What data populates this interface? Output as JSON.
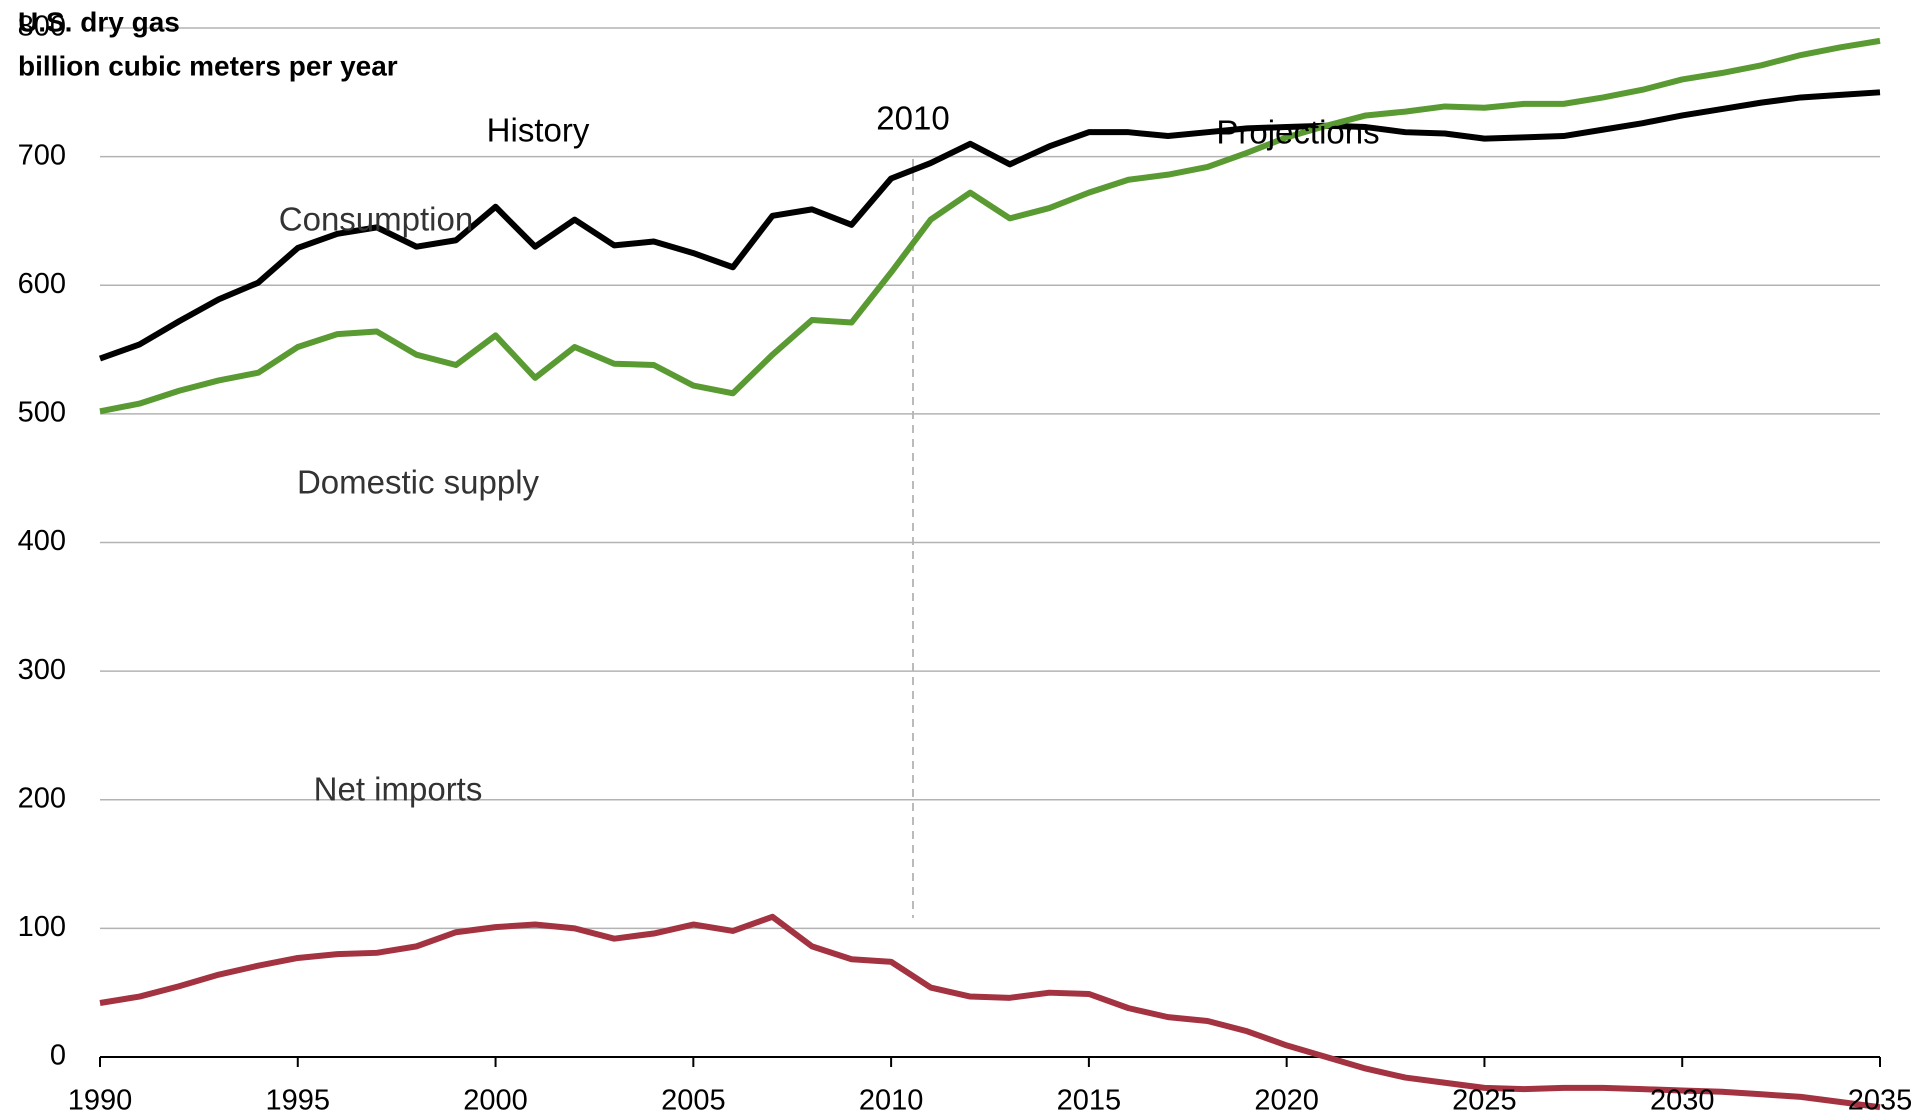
{
  "chart_data": {
    "type": "line",
    "title": "U.S. dry gas",
    "subtitle": "billion cubic  meters per year",
    "annotations": [
      "History",
      "2010",
      "Projections",
      "Consumption",
      "Domestic supply",
      "Net imports"
    ],
    "x": [
      1990,
      1991,
      1992,
      1993,
      1994,
      1995,
      1996,
      1997,
      1998,
      1999,
      2000,
      2001,
      2002,
      2003,
      2004,
      2005,
      2006,
      2007,
      2008,
      2009,
      2010,
      2011,
      2012,
      2013,
      2014,
      2015,
      2016,
      2017,
      2018,
      2019,
      2020,
      2021,
      2022,
      2023,
      2024,
      2025,
      2026,
      2027,
      2028,
      2029,
      2030,
      2031,
      2032,
      2033,
      2034,
      2035
    ],
    "series": [
      {
        "name": "Consumption",
        "color": "#000000",
        "values": [
          543,
          554,
          572,
          589,
          602,
          629,
          640,
          645,
          630,
          635,
          661,
          630,
          651,
          631,
          634,
          625,
          614,
          654,
          659,
          647,
          683,
          695,
          710,
          694,
          708,
          719,
          719,
          716,
          719,
          722,
          723,
          724,
          723,
          719,
          718,
          714,
          715,
          716,
          721,
          726,
          732,
          737,
          742,
          746,
          748,
          750
        ]
      },
      {
        "name": "Domestic supply",
        "color": "#5a9a32",
        "values": [
          502,
          508,
          518,
          526,
          532,
          552,
          562,
          564,
          546,
          538,
          561,
          528,
          552,
          539,
          538,
          522,
          516,
          546,
          573,
          571,
          610,
          651,
          672,
          652,
          660,
          672,
          682,
          686,
          692,
          703,
          715,
          724,
          732,
          735,
          739,
          738,
          741,
          741,
          746,
          752,
          760,
          765,
          771,
          779,
          785,
          790
        ]
      },
      {
        "name": "Net imports",
        "color": "#a33340",
        "values": [
          42,
          47,
          55,
          64,
          71,
          77,
          80,
          81,
          86,
          97,
          101,
          103,
          100,
          92,
          96,
          103,
          98,
          109,
          86,
          76,
          74,
          54,
          47,
          46,
          50,
          49,
          38,
          31,
          28,
          20,
          9,
          0,
          -9,
          -16,
          -20,
          -24,
          -25,
          -24,
          -24,
          -25,
          -26,
          -27,
          -29,
          -31,
          -35,
          -39
        ]
      }
    ],
    "xlim": [
      1990,
      2035
    ],
    "xticks": [
      1990,
      1995,
      2000,
      2005,
      2010,
      2015,
      2020,
      2025,
      2030,
      2035
    ],
    "ylim": [
      0,
      800
    ],
    "yticks": [
      0,
      100,
      200,
      300,
      400,
      500,
      600,
      700,
      800
    ],
    "grid": true
  }
}
